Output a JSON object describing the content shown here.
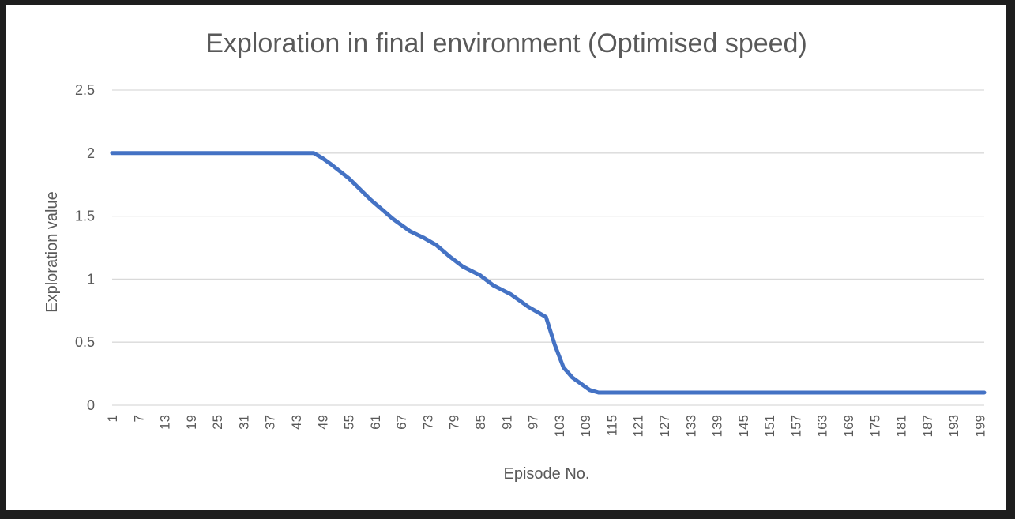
{
  "chart_data": {
    "type": "line",
    "title": "Exploration in final environment (Optimised speed)",
    "xlabel": "Episode No.",
    "ylabel": "Exploration value",
    "ylim": [
      0,
      2.5
    ],
    "y_ticks": [
      "0",
      "0.5",
      "1",
      "1.5",
      "2",
      "2.5"
    ],
    "x_range": [
      1,
      200
    ],
    "x_tick_labels": [
      "1",
      "7",
      "13",
      "19",
      "25",
      "31",
      "37",
      "43",
      "49",
      "55",
      "61",
      "67",
      "73",
      "79",
      "85",
      "91",
      "97",
      "103",
      "109",
      "115",
      "121",
      "127",
      "133",
      "139",
      "145",
      "151",
      "157",
      "163",
      "169",
      "175",
      "181",
      "187",
      "193",
      "199"
    ],
    "grid": true,
    "legend": "none",
    "colors": {
      "series": "#4472c4",
      "grid": "#d9d9d9",
      "text": "#595959"
    },
    "series": [
      {
        "x": [
          1,
          10,
          20,
          30,
          40,
          47,
          49,
          51,
          55,
          60,
          63,
          65,
          69,
          72,
          75,
          78,
          81,
          85,
          88,
          92,
          96,
          100,
          102,
          104,
          106,
          108,
          110,
          112,
          113,
          120,
          140,
          160,
          180,
          200
        ],
        "values": [
          2.0,
          2.0,
          2.0,
          2.0,
          2.0,
          2.0,
          1.96,
          1.91,
          1.8,
          1.63,
          1.54,
          1.48,
          1.38,
          1.33,
          1.27,
          1.18,
          1.1,
          1.03,
          0.95,
          0.88,
          0.78,
          0.7,
          0.48,
          0.3,
          0.22,
          0.17,
          0.12,
          0.1,
          0.1,
          0.1,
          0.1,
          0.1,
          0.1,
          0.1
        ]
      }
    ]
  }
}
